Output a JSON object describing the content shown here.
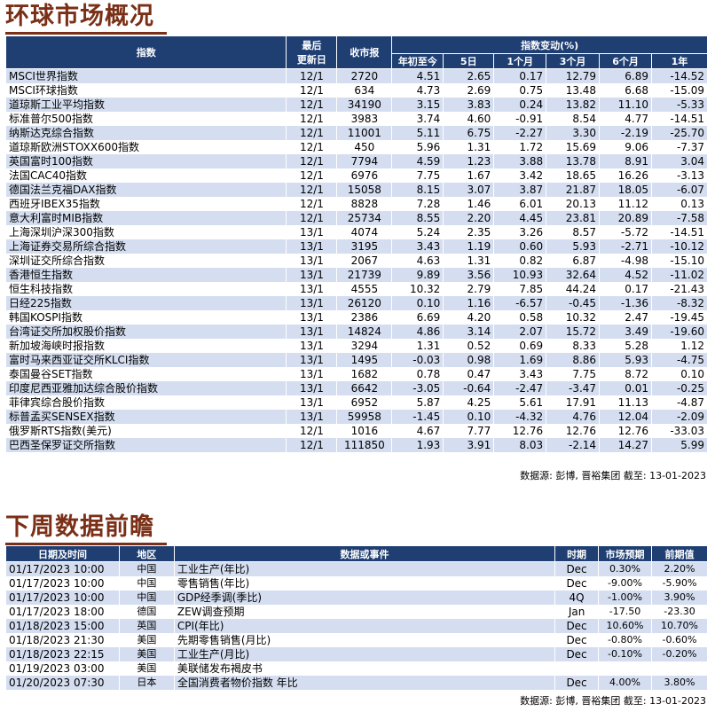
{
  "market": {
    "title": "环球市场概况",
    "headers": {
      "index": "指数",
      "last_updated_1": "最后",
      "last_updated_2": "更新日",
      "close": "收市报",
      "change_group": "指数变动(%)",
      "ytd": "年初至今",
      "d5": "5日",
      "m1": "1个月",
      "m3": "3个月",
      "m6": "6个月",
      "y1": "1年"
    },
    "rows": [
      [
        "MSCI世界指数",
        "12/1",
        "2720",
        "4.51",
        "2.65",
        "0.17",
        "12.79",
        "6.89",
        "-14.52"
      ],
      [
        "MSCI环球指数",
        "12/1",
        "634",
        "4.73",
        "2.69",
        "0.75",
        "13.48",
        "6.68",
        "-15.09"
      ],
      [
        "道琼斯工业平均指数",
        "12/1",
        "34190",
        "3.15",
        "3.83",
        "0.24",
        "13.82",
        "11.10",
        "-5.33"
      ],
      [
        "标准普尔500指数",
        "12/1",
        "3983",
        "3.74",
        "4.60",
        "-0.91",
        "8.54",
        "4.77",
        "-14.51"
      ],
      [
        "纳斯达克综合指数",
        "12/1",
        "11001",
        "5.11",
        "6.75",
        "-2.27",
        "3.30",
        "-2.19",
        "-25.70"
      ],
      [
        "道琼斯欧洲STOXX600指数",
        "12/1",
        "450",
        "5.96",
        "1.31",
        "1.72",
        "15.69",
        "9.06",
        "-7.37"
      ],
      [
        "英国富时100指数",
        "12/1",
        "7794",
        "4.59",
        "1.23",
        "3.88",
        "13.78",
        "8.91",
        "3.04"
      ],
      [
        "法国CAC40指数",
        "12/1",
        "6976",
        "7.75",
        "1.67",
        "3.42",
        "18.65",
        "16.26",
        "-3.13"
      ],
      [
        "德国法兰克福DAX指数",
        "12/1",
        "15058",
        "8.15",
        "3.07",
        "3.87",
        "21.87",
        "18.05",
        "-6.07"
      ],
      [
        "西班牙IBEX35指数",
        "12/1",
        "8828",
        "7.28",
        "1.46",
        "6.01",
        "20.13",
        "11.12",
        "0.13"
      ],
      [
        "意大利富时MIB指数",
        "12/1",
        "25734",
        "8.55",
        "2.20",
        "4.45",
        "23.81",
        "20.89",
        "-7.58"
      ],
      [
        "上海深圳沪深300指数",
        "13/1",
        "4074",
        "5.24",
        "2.35",
        "3.26",
        "8.57",
        "-5.72",
        "-14.51"
      ],
      [
        "上海证券交易所综合指数",
        "13/1",
        "3195",
        "3.43",
        "1.19",
        "0.60",
        "5.93",
        "-2.71",
        "-10.12"
      ],
      [
        "深圳证交所综合指数",
        "13/1",
        "2067",
        "4.63",
        "1.31",
        "0.82",
        "6.87",
        "-4.98",
        "-15.10"
      ],
      [
        "香港恒生指数",
        "13/1",
        "21739",
        "9.89",
        "3.56",
        "10.93",
        "32.64",
        "4.52",
        "-11.02"
      ],
      [
        "恒生科技指数",
        "13/1",
        "4555",
        "10.32",
        "2.79",
        "7.85",
        "44.24",
        "0.17",
        "-21.43"
      ],
      [
        "日经225指数",
        "13/1",
        "26120",
        "0.10",
        "1.16",
        "-6.57",
        "-0.45",
        "-1.36",
        "-8.32"
      ],
      [
        "韩国KOSPI指数",
        "13/1",
        "2386",
        "6.69",
        "4.20",
        "0.58",
        "10.32",
        "2.47",
        "-19.45"
      ],
      [
        "台湾证交所加权股价指数",
        "13/1",
        "14824",
        "4.86",
        "3.14",
        "2.07",
        "15.72",
        "3.49",
        "-19.60"
      ],
      [
        "新加坡海峡时报指数",
        "13/1",
        "3294",
        "1.31",
        "0.52",
        "0.69",
        "8.33",
        "5.28",
        "1.12"
      ],
      [
        "富时马来西亚证交所KLCI指数",
        "13/1",
        "1495",
        "-0.03",
        "0.98",
        "1.69",
        "8.86",
        "5.93",
        "-4.75"
      ],
      [
        "泰国曼谷SET指数",
        "13/1",
        "1682",
        "0.78",
        "0.47",
        "3.43",
        "7.75",
        "8.72",
        "0.10"
      ],
      [
        "印度尼西亚雅加达综合股价指数",
        "13/1",
        "6642",
        "-3.05",
        "-0.64",
        "-2.47",
        "-3.47",
        "0.01",
        "-0.25"
      ],
      [
        "菲律宾综合股价指数",
        "13/1",
        "6952",
        "5.87",
        "4.25",
        "5.61",
        "17.91",
        "11.13",
        "-4.87"
      ],
      [
        "标普孟买SENSEX指数",
        "13/1",
        "59958",
        "-1.45",
        "0.10",
        "-4.32",
        "4.76",
        "12.04",
        "-2.09"
      ],
      [
        "俄罗斯RTS指数(美元)",
        "12/1",
        "1016",
        "4.67",
        "7.77",
        "12.76",
        "12.76",
        "12.76",
        "-33.03"
      ],
      [
        "巴西圣保罗证交所指数",
        "12/1",
        "111850",
        "1.93",
        "3.91",
        "8.03",
        "-2.14",
        "14.27",
        "5.99"
      ]
    ],
    "source": "数据源: 彭博, 晋裕集团 截至: 13-01-2023"
  },
  "events": {
    "title": "下周数据前瞻",
    "headers": {
      "datetime": "日期及时间",
      "region": "地区",
      "event": "数据或事件",
      "period": "时期",
      "forecast": "市场预期",
      "previous": "前期值"
    },
    "rows": [
      [
        "01/17/2023 10:00",
        "中国",
        "工业生产(年比)",
        "Dec",
        "0.30%",
        "2.20%"
      ],
      [
        "01/17/2023 10:00",
        "中国",
        "零售销售(年比)",
        "Dec",
        "-9.00%",
        "-5.90%"
      ],
      [
        "01/17/2023 10:00",
        "中国",
        "GDP经季调(季比)",
        "4Q",
        "-1.00%",
        "3.90%"
      ],
      [
        "01/17/2023 18:00",
        "德国",
        "ZEW调查预期",
        "Jan",
        "-17.50",
        "-23.30"
      ],
      [
        "01/18/2023 15:00",
        "英国",
        "CPI(年比)",
        "Dec",
        "10.60%",
        "10.70%"
      ],
      [
        "01/18/2023 21:30",
        "美国",
        "先期零售销售(月比)",
        "Dec",
        "-0.80%",
        "-0.60%"
      ],
      [
        "01/18/2023 22:15",
        "美国",
        "工业生产(月比)",
        "Dec",
        "-0.10%",
        "-0.20%"
      ],
      [
        "01/19/2023 03:00",
        "美国",
        "美联储发布褐皮书",
        "",
        "",
        ""
      ],
      [
        "01/20/2023 07:30",
        "日本",
        "全国消费者物价指数 年比",
        "Dec",
        "4.00%",
        "3.80%"
      ]
    ],
    "source": "数据源: 彭博, 晋裕集团 截至: 13-01-2023"
  }
}
